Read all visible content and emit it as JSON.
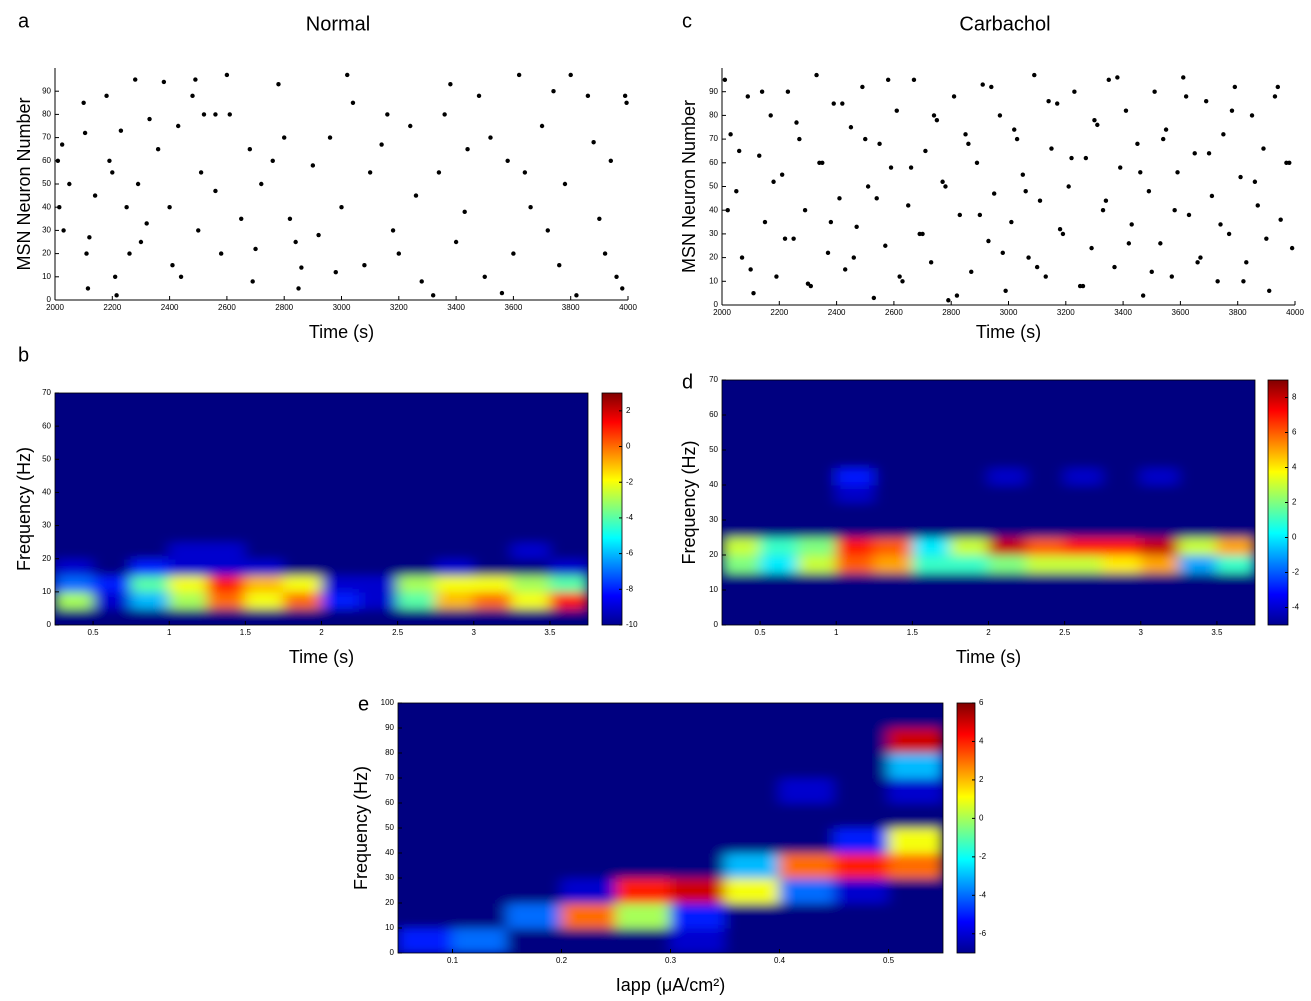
{
  "chart_data": [
    {
      "type": "scatter",
      "panel": "a",
      "title": "Normal",
      "xlabel": "Time (s)",
      "ylabel": "MSN Neuron Number",
      "xlim": [
        2000,
        4000
      ],
      "ylim": [
        0,
        100
      ],
      "xticks": [
        2000,
        2200,
        2400,
        2600,
        2800,
        3000,
        3200,
        3400,
        3600,
        3800,
        4000
      ],
      "yticks": [
        0,
        10,
        20,
        30,
        40,
        50,
        60,
        70,
        80,
        90
      ],
      "x": [
        2010,
        2015,
        2025,
        2030,
        2050,
        2100,
        2105,
        2110,
        2115,
        2120,
        2180,
        2190,
        2200,
        2210,
        2215,
        2230,
        2250,
        2260,
        2280,
        2290,
        2300,
        2320,
        2330,
        2360,
        2380,
        2400,
        2410,
        2430,
        2440,
        2480,
        2490,
        2500,
        2510,
        2520,
        2560,
        2580,
        2600,
        2610,
        2650,
        2680,
        2690,
        2700,
        2720,
        2780,
        2800,
        2820,
        2840,
        2850,
        2860,
        2900,
        2920,
        2960,
        2980,
        3000,
        3020,
        3040,
        3080,
        3100,
        3140,
        3160,
        3180,
        3200,
        3240,
        3260,
        3280,
        3320,
        3340,
        3360,
        3380,
        3400,
        3430,
        3440,
        3480,
        3500,
        3520,
        3560,
        3580,
        3600,
        3620,
        3640,
        3660,
        3700,
        3720,
        3740,
        3760,
        3780,
        3800,
        3820,
        3860,
        3880,
        3900,
        3920,
        3940,
        3960,
        3980,
        3990,
        3995,
        2140,
        2560,
        2760
      ],
      "y": [
        60,
        40,
        67,
        30,
        50,
        85,
        72,
        20,
        5,
        27,
        88,
        60,
        55,
        10,
        2,
        73,
        40,
        20,
        95,
        50,
        25,
        33,
        78,
        65,
        94,
        40,
        15,
        75,
        10,
        88,
        95,
        30,
        55,
        80,
        47,
        20,
        97,
        80,
        35,
        65,
        8,
        22,
        50,
        93,
        70,
        35,
        25,
        5,
        14,
        58,
        28,
        70,
        12,
        40,
        97,
        85,
        15,
        55,
        67,
        80,
        30,
        20,
        75,
        45,
        8,
        2,
        55,
        80,
        93,
        25,
        38,
        65,
        88,
        10,
        70,
        3,
        60,
        20,
        97,
        55,
        40,
        75,
        30,
        90,
        15,
        50,
        97,
        2,
        88,
        68,
        35,
        20,
        60,
        10,
        5,
        88,
        85,
        45,
        80,
        60
      ]
    },
    {
      "type": "scatter",
      "panel": "c",
      "title": "Carbachol",
      "xlabel": "Time (s)",
      "ylabel": "MSN Neuron Number",
      "xlim": [
        2000,
        4000
      ],
      "ylim": [
        0,
        100
      ],
      "xticks": [
        2000,
        2200,
        2400,
        2600,
        2800,
        3000,
        3200,
        3400,
        3600,
        3800,
        4000
      ],
      "yticks": [
        0,
        10,
        20,
        30,
        40,
        50,
        60,
        70,
        80,
        90
      ],
      "x": [
        2010,
        2030,
        2050,
        2070,
        2090,
        2110,
        2130,
        2150,
        2170,
        2190,
        2210,
        2230,
        2250,
        2270,
        2290,
        2310,
        2330,
        2350,
        2370,
        2390,
        2410,
        2430,
        2450,
        2470,
        2490,
        2510,
        2530,
        2550,
        2570,
        2590,
        2610,
        2630,
        2650,
        2670,
        2690,
        2710,
        2730,
        2750,
        2770,
        2790,
        2810,
        2830,
        2850,
        2870,
        2890,
        2910,
        2930,
        2950,
        2970,
        2990,
        3010,
        3030,
        3050,
        3070,
        3090,
        3110,
        3130,
        3150,
        3170,
        3190,
        3210,
        3230,
        3250,
        3270,
        3290,
        3310,
        3330,
        3350,
        3370,
        3390,
        3410,
        3430,
        3450,
        3470,
        3490,
        3510,
        3530,
        3550,
        3570,
        3590,
        3610,
        3630,
        3650,
        3670,
        3690,
        3710,
        3730,
        3750,
        3770,
        3790,
        3810,
        3830,
        3850,
        3870,
        3890,
        3910,
        3930,
        3950,
        3970,
        3990,
        2020,
        2060,
        2100,
        2140,
        2180,
        2220,
        2260,
        2300,
        2340,
        2380,
        2420,
        2460,
        2500,
        2540,
        2580,
        2620,
        2660,
        2700,
        2740,
        2780,
        2820,
        2860,
        2900,
        2940,
        2980,
        3020,
        3060,
        3100,
        3140,
        3180,
        3220,
        3260,
        3300,
        3340,
        3380,
        3420,
        3460,
        3500,
        3540,
        3580,
        3620,
        3660,
        3700,
        3740,
        3780,
        3820,
        3860,
        3900,
        3940,
        3980
      ],
      "y": [
        95,
        72,
        48,
        20,
        88,
        5,
        63,
        35,
        80,
        12,
        55,
        90,
        28,
        70,
        40,
        8,
        97,
        60,
        22,
        85,
        45,
        15,
        75,
        33,
        92,
        50,
        3,
        68,
        25,
        58,
        82,
        10,
        42,
        95,
        30,
        65,
        18,
        78,
        52,
        2,
        88,
        38,
        72,
        14,
        60,
        93,
        27,
        47,
        80,
        6,
        35,
        70,
        55,
        20,
        97,
        44,
        12,
        66,
        85,
        30,
        50,
        90,
        8,
        62,
        24,
        76,
        40,
        95,
        16,
        58,
        82,
        34,
        68,
        4,
        48,
        90,
        26,
        74,
        12,
        56,
        96,
        38,
        64,
        20,
        86,
        46,
        10,
        72,
        30,
        92,
        54,
        18,
        80,
        42,
        66,
        6,
        88,
        36,
        60,
        24,
        40,
        65,
        15,
        90,
        52,
        28,
        77,
        9,
        60,
        35,
        85,
        20,
        70,
        45,
        95,
        12,
        58,
        30,
        80,
        50,
        4,
        68,
        38,
        92,
        22,
        74,
        48,
        16,
        86,
        32,
        62,
        8,
        78,
        44,
        96,
        26,
        56,
        14,
        70,
        40,
        88,
        18,
        64,
        34,
        82,
        10,
        52,
        28,
        92,
        60
      ]
    },
    {
      "type": "heatmap",
      "panel": "b",
      "xlabel": "Time (s)",
      "ylabel": "Frequency (Hz)",
      "xlim": [
        0.25,
        3.75
      ],
      "ylim": [
        0,
        70
      ],
      "xticks": [
        0.5,
        1,
        1.5,
        2,
        2.5,
        3,
        3.5
      ],
      "yticks": [
        0,
        10,
        20,
        30,
        40,
        50,
        60,
        70
      ],
      "clim": [
        -10,
        3
      ],
      "cticks": [
        -10,
        -8,
        -6,
        -4,
        -2,
        0,
        2
      ],
      "x": [
        0.375,
        0.625,
        0.875,
        1.125,
        1.375,
        1.625,
        1.875,
        2.125,
        2.375,
        2.625,
        2.875,
        3.125,
        3.375,
        3.625
      ],
      "y": [
        2.5,
        7.5,
        12.5,
        17.5,
        22.5,
        27.5,
        32.5,
        37.5,
        42.5,
        47.5,
        52.5,
        57.5,
        62.5,
        67.5
      ],
      "z": [
        [
          -10,
          -10,
          -10,
          -10,
          -10,
          -10,
          -10,
          -10,
          -10,
          -10,
          -10,
          -10,
          -10,
          -10
        ],
        [
          -3,
          -9,
          -6,
          -3,
          0,
          -2,
          0,
          -8,
          -9,
          -4,
          -1,
          0,
          -2,
          1
        ],
        [
          -7,
          -8,
          -4,
          -2,
          1,
          -1,
          -2,
          -9,
          -9,
          -3,
          -2,
          -2,
          -3,
          -4
        ],
        [
          -9,
          -10,
          -8,
          -9,
          -9,
          -9,
          -10,
          -10,
          -10,
          -10,
          -9,
          -10,
          -10,
          -9
        ],
        [
          -10,
          -10,
          -10,
          -9,
          -9,
          -10,
          -10,
          -10,
          -10,
          -10,
          -10,
          -10,
          -9,
          -10
        ],
        [
          -10,
          -10,
          -10,
          -10,
          -10,
          -10,
          -10,
          -10,
          -10,
          -10,
          -10,
          -10,
          -10,
          -10
        ],
        [
          -10,
          -10,
          -10,
          -10,
          -10,
          -10,
          -10,
          -10,
          -10,
          -10,
          -10,
          -10,
          -10,
          -10
        ],
        [
          -10,
          -10,
          -10,
          -10,
          -10,
          -10,
          -10,
          -10,
          -10,
          -10,
          -10,
          -10,
          -10,
          -10
        ],
        [
          -10,
          -10,
          -10,
          -10,
          -10,
          -10,
          -10,
          -10,
          -10,
          -10,
          -10,
          -10,
          -10,
          -10
        ],
        [
          -10,
          -10,
          -10,
          -10,
          -10,
          -10,
          -10,
          -10,
          -10,
          -10,
          -10,
          -10,
          -10,
          -10
        ],
        [
          -10,
          -10,
          -10,
          -10,
          -10,
          -10,
          -10,
          -10,
          -10,
          -10,
          -10,
          -10,
          -10,
          -10
        ],
        [
          -10,
          -10,
          -10,
          -10,
          -10,
          -10,
          -10,
          -10,
          -10,
          -10,
          -10,
          -10,
          -10,
          -10
        ],
        [
          -10,
          -10,
          -10,
          -10,
          -10,
          -10,
          -10,
          -10,
          -10,
          -10,
          -10,
          -10,
          -10,
          -10
        ],
        [
          -10,
          -10,
          -10,
          -10,
          -10,
          -10,
          -10,
          -10,
          -10,
          -10,
          -10,
          -10,
          -10,
          -10
        ]
      ]
    },
    {
      "type": "heatmap",
      "panel": "d",
      "xlabel": "Time (s)",
      "ylabel": "Frequency (Hz)",
      "xlim": [
        0.25,
        3.75
      ],
      "ylim": [
        0,
        70
      ],
      "xticks": [
        0.5,
        1,
        1.5,
        2,
        2.5,
        3,
        3.5
      ],
      "yticks": [
        0,
        10,
        20,
        30,
        40,
        50,
        60,
        70
      ],
      "clim": [
        -5,
        9
      ],
      "cticks": [
        -4,
        -2,
        0,
        2,
        4,
        6,
        8
      ],
      "x": [
        0.375,
        0.625,
        0.875,
        1.125,
        1.375,
        1.625,
        1.875,
        2.125,
        2.375,
        2.625,
        2.875,
        3.125,
        3.375,
        3.625
      ],
      "y": [
        2.5,
        7.5,
        12.5,
        17.5,
        22.5,
        27.5,
        32.5,
        37.5,
        42.5,
        47.5,
        52.5,
        57.5,
        62.5,
        67.5
      ],
      "z": [
        [
          -5,
          -5,
          -5,
          -5,
          -5,
          -5,
          -5,
          -5,
          -5,
          -5,
          -5,
          -5,
          -5,
          -5
        ],
        [
          -5,
          -5,
          -5,
          -5,
          -5,
          -5,
          -5,
          -5,
          -5,
          -5,
          -5,
          -5,
          -5,
          -5
        ],
        [
          -5,
          -5,
          -5,
          -5,
          -5,
          -5,
          -5,
          -5,
          -5,
          -5,
          -5,
          -5,
          -5,
          -5
        ],
        [
          2,
          0,
          3,
          6,
          5,
          1,
          1,
          2,
          3,
          3,
          4,
          5,
          -1,
          1
        ],
        [
          3,
          1,
          2,
          7,
          6,
          0,
          3,
          8,
          6,
          7,
          7,
          8,
          3,
          5
        ],
        [
          -5,
          -5,
          -5,
          -5,
          -5,
          -5,
          -5,
          -5,
          -5,
          -5,
          -5,
          -5,
          -5,
          -5
        ],
        [
          -5,
          -5,
          -5,
          -5,
          -5,
          -5,
          -5,
          -5,
          -5,
          -5,
          -5,
          -5,
          -5,
          -5
        ],
        [
          -5,
          -5,
          -5,
          -4,
          -5,
          -5,
          -5,
          -5,
          -5,
          -5,
          -5,
          -5,
          -5,
          -5
        ],
        [
          -5,
          -5,
          -5,
          -3,
          -5,
          -5,
          -5,
          -4,
          -5,
          -4,
          -5,
          -4,
          -5,
          -5
        ],
        [
          -5,
          -5,
          -5,
          -5,
          -5,
          -5,
          -5,
          -5,
          -5,
          -5,
          -5,
          -5,
          -5,
          -5
        ],
        [
          -5,
          -5,
          -5,
          -5,
          -5,
          -5,
          -5,
          -5,
          -5,
          -5,
          -5,
          -5,
          -5,
          -5
        ],
        [
          -5,
          -5,
          -5,
          -5,
          -5,
          -5,
          -5,
          -5,
          -5,
          -5,
          -5,
          -5,
          -5,
          -5
        ],
        [
          -5,
          -5,
          -5,
          -5,
          -5,
          -5,
          -5,
          -5,
          -5,
          -5,
          -5,
          -5,
          -5,
          -5
        ],
        [
          -5,
          -5,
          -5,
          -5,
          -5,
          -5,
          -5,
          -5,
          -5,
          -5,
          -5,
          -5,
          -5,
          -5
        ]
      ]
    },
    {
      "type": "heatmap",
      "panel": "e",
      "xlabel": "Iapp (μA/cm²)",
      "ylabel": "Frequency (Hz)",
      "xlim": [
        0.05,
        0.55
      ],
      "ylim": [
        0,
        100
      ],
      "xticks": [
        0.1,
        0.2,
        0.3,
        0.4,
        0.5
      ],
      "yticks": [
        0,
        10,
        20,
        30,
        40,
        50,
        60,
        70,
        80,
        90,
        100
      ],
      "clim": [
        -7,
        6
      ],
      "cticks": [
        -6,
        -4,
        -2,
        0,
        2,
        4,
        6
      ],
      "x": [
        0.075,
        0.125,
        0.175,
        0.225,
        0.275,
        0.325,
        0.375,
        0.425,
        0.475,
        0.525
      ],
      "y": [
        5,
        15,
        25,
        35,
        45,
        55,
        65,
        75,
        85,
        95
      ],
      "z": [
        [
          -5,
          -4,
          -7,
          -7,
          -7,
          -6,
          -7,
          -7,
          -7,
          -7
        ],
        [
          -7,
          -7,
          -4,
          3,
          0,
          -5,
          -7,
          -7,
          -7,
          -7
        ],
        [
          -7,
          -7,
          -7,
          -6,
          4,
          5,
          1,
          -4,
          -6,
          -7
        ],
        [
          -7,
          -7,
          -7,
          -7,
          -7,
          -7,
          -3,
          3,
          4,
          3
        ],
        [
          -7,
          -7,
          -7,
          -7,
          -7,
          -7,
          -7,
          -7,
          -5,
          1
        ],
        [
          -7,
          -7,
          -7,
          -7,
          -7,
          -7,
          -7,
          -7,
          -7,
          -7
        ],
        [
          -7,
          -7,
          -7,
          -7,
          -7,
          -7,
          -7,
          -6,
          -7,
          -6
        ],
        [
          -7,
          -7,
          -7,
          -7,
          -7,
          -7,
          -7,
          -7,
          -7,
          -3
        ],
        [
          -7,
          -7,
          -7,
          -7,
          -7,
          -7,
          -7,
          -7,
          -7,
          5
        ],
        [
          -7,
          -7,
          -7,
          -7,
          -7,
          -7,
          -7,
          -7,
          -7,
          -7
        ]
      ]
    }
  ]
}
